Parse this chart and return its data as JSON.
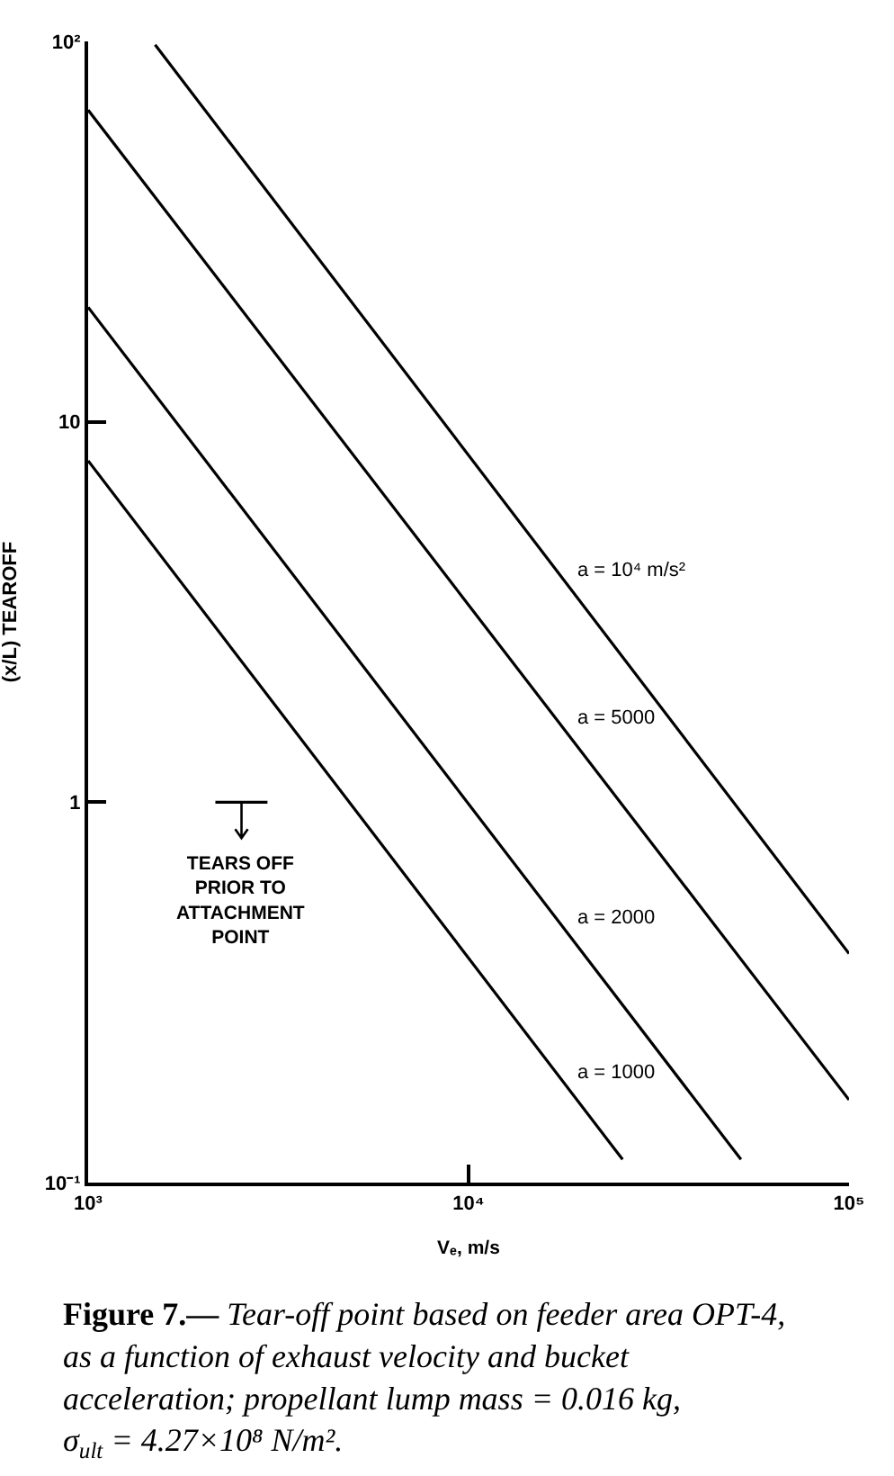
{
  "chart_data": {
    "type": "line",
    "xlabel": "Vₑ, m/s",
    "ylabel": "(x/L) TEAROFF",
    "log": "xy",
    "xlim": [
      1000,
      100000
    ],
    "ylim": [
      0.1,
      100
    ],
    "xticks": [
      {
        "value": 1000,
        "label": "10³"
      },
      {
        "value": 10000,
        "label": "10⁴"
      },
      {
        "value": 100000,
        "label": "10⁵"
      }
    ],
    "yticks": [
      {
        "value": 0.1,
        "label": "10⁻¹"
      },
      1,
      10,
      {
        "value": 100,
        "label": "10²"
      }
    ],
    "grid": false,
    "marker": "none",
    "line_style": "solid",
    "series": [
      {
        "name": "a = 10⁴ m/s²",
        "color": "#000000",
        "x": [
          1500,
          100000
        ],
        "values": [
          98,
          0.4
        ]
      },
      {
        "name": "a = 5000",
        "color": "#000000",
        "x": [
          1000,
          100000
        ],
        "values": [
          66,
          0.165
        ]
      },
      {
        "name": "a = 2000",
        "color": "#000000",
        "x": [
          1000,
          52000
        ],
        "values": [
          20,
          0.115
        ]
      },
      {
        "name": "a = 1000",
        "color": "#000000",
        "x": [
          1000,
          25400
        ],
        "values": [
          7.9,
          0.115
        ]
      },
      {
        "color": "#000000",
        "x": [
          2160,
          2960
        ],
        "values": [
          1,
          1
        ]
      }
    ],
    "annotations": [
      {
        "text": "TEARS OFF PRIOR TO ATTACHMENT POINT",
        "x": 2530,
        "y": 1
      },
      "Figure 7.— Tear-off point based on feeder area OPT-4, as a function of exhaust velocity and bucket acceleration; propellant lump mass = 0.016 kg, σ$_{ult}$ = 4.27×10⁸ N/m²."
    ]
  }
}
